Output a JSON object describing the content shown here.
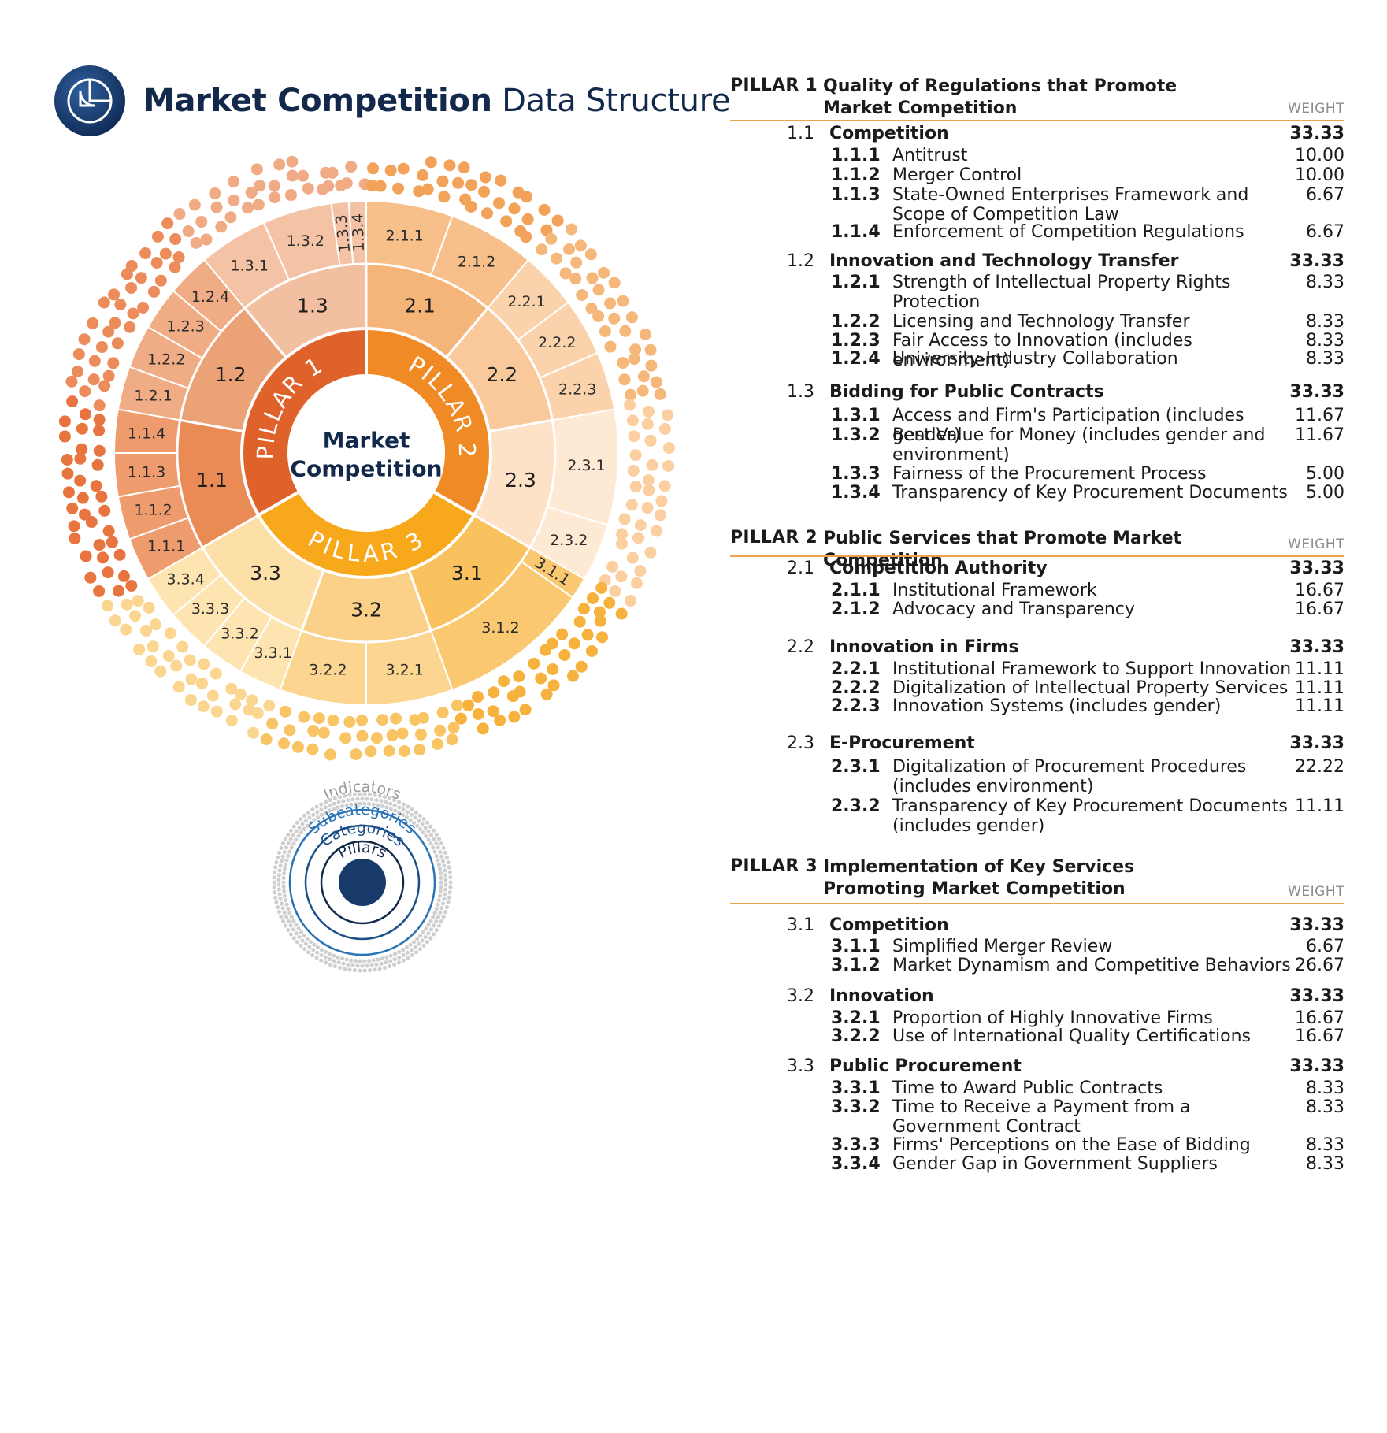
{
  "header": {
    "title_bold": "Market Competition",
    "title_light": "Data Structure",
    "logo_icon": "pie-chart-icon"
  },
  "colors": {
    "pillar1": "#e0622b",
    "pillar2": "#f08a24",
    "pillar3": "#f7a81b",
    "navy": "#13294b",
    "rule": "#f0a24a",
    "legend_blue": "#2a74b5"
  },
  "sunburst": {
    "center": [
      "Market",
      "Competition"
    ],
    "pillars": [
      "PILLAR 1",
      "PILLAR 2",
      "PILLAR 3"
    ],
    "categories": [
      "1.1",
      "1.2",
      "1.3",
      "2.1",
      "2.2",
      "2.3",
      "3.1",
      "3.2",
      "3.3"
    ],
    "subcategories": [
      "1.1.1",
      "1.1.2",
      "1.1.3",
      "1.1.4",
      "1.2.1",
      "1.2.2",
      "1.2.3",
      "1.2.4",
      "1.3.1",
      "1.3.2",
      "1.3.3",
      "1.3.4",
      "2.1.1",
      "2.1.2",
      "2.2.1",
      "2.2.2",
      "2.2.3",
      "2.3.1",
      "2.3.2",
      "3.1.1",
      "3.1.2",
      "3.2.1",
      "3.2.2",
      "3.3.1",
      "3.3.2",
      "3.3.3",
      "3.3.4"
    ]
  },
  "legend": {
    "indicators": "Indicators",
    "subcategories": "Subcategories",
    "categories": "Categories",
    "pillars": "Pillars"
  },
  "table": {
    "weight_label": "WEIGHT",
    "pillars": [
      {
        "code": "PILLAR 1",
        "title": "Quality of Regulations that Promote Market Competition",
        "categories": [
          {
            "code": "1.1",
            "name": "Competition",
            "weight": "33.33",
            "indicators": [
              {
                "code": "1.1.1",
                "name": "Antitrust",
                "weight": "10.00"
              },
              {
                "code": "1.1.2",
                "name": "Merger Control",
                "weight": "10.00"
              },
              {
                "code": "1.1.3",
                "name": "State-Owned Enterprises Framework and Scope of Competition Law",
                "weight": "6.67"
              },
              {
                "code": "1.1.4",
                "name": "Enforcement of Competition Regulations",
                "weight": "6.67"
              }
            ]
          },
          {
            "code": "1.2",
            "name": "Innovation and Technology Transfer",
            "weight": "33.33",
            "indicators": [
              {
                "code": "1.2.1",
                "name": "Strength of Intellectual Property Rights Protection",
                "weight": "8.33"
              },
              {
                "code": "1.2.2",
                "name": "Licensing and Technology Transfer",
                "weight": "8.33"
              },
              {
                "code": "1.2.3",
                "name": "Fair Access to Innovation (includes environment)",
                "weight": "8.33"
              },
              {
                "code": "1.2.4",
                "name": "University-Industry Collaboration",
                "weight": "8.33"
              }
            ]
          },
          {
            "code": "1.3",
            "name": "Bidding for Public Contracts",
            "weight": "33.33",
            "indicators": [
              {
                "code": "1.3.1",
                "name": "Access and Firm's Participation (includes gender)",
                "weight": "11.67"
              },
              {
                "code": "1.3.2",
                "name": "Best Value for Money (includes gender and environment)",
                "weight": "11.67"
              },
              {
                "code": "1.3.3",
                "name": "Fairness of the Procurement Process",
                "weight": "5.00"
              },
              {
                "code": "1.3.4",
                "name": "Transparency of Key Procurement Documents",
                "weight": "5.00"
              }
            ]
          }
        ]
      },
      {
        "code": "PILLAR 2",
        "title": "Public Services that Promote Market Competition",
        "categories": [
          {
            "code": "2.1",
            "name": "Competition Authority",
            "weight": "33.33",
            "indicators": [
              {
                "code": "2.1.1",
                "name": "Institutional Framework",
                "weight": "16.67"
              },
              {
                "code": "2.1.2",
                "name": "Advocacy and Transparency",
                "weight": "16.67"
              }
            ]
          },
          {
            "code": "2.2",
            "name": "Innovation in Firms",
            "weight": "33.33",
            "indicators": [
              {
                "code": "2.2.1",
                "name": "Institutional Framework to Support Innovation",
                "weight": "11.11"
              },
              {
                "code": "2.2.2",
                "name": "Digitalization of Intellectual Property Services",
                "weight": "11.11"
              },
              {
                "code": "2.2.3",
                "name": "Innovation Systems (includes gender)",
                "weight": "11.11"
              }
            ]
          },
          {
            "code": "2.3",
            "name": "E-Procurement",
            "weight": "33.33",
            "indicators": [
              {
                "code": "2.3.1",
                "name": "Digitalization of Procurement Procedures (includes environment)",
                "weight": "22.22"
              },
              {
                "code": "2.3.2",
                "name": "Transparency of Key Procurement Documents (includes gender)",
                "weight": "11.11"
              }
            ]
          }
        ]
      },
      {
        "code": "PILLAR 3",
        "title": "Implementation of Key Services Promoting Market Competition",
        "categories": [
          {
            "code": "3.1",
            "name": "Competition",
            "weight": "33.33",
            "indicators": [
              {
                "code": "3.1.1",
                "name": "Simplified Merger Review",
                "weight": "6.67"
              },
              {
                "code": "3.1.2",
                "name": "Market Dynamism and Competitive Behaviors",
                "weight": "26.67"
              }
            ]
          },
          {
            "code": "3.2",
            "name": "Innovation",
            "weight": "33.33",
            "indicators": [
              {
                "code": "3.2.1",
                "name": "Proportion of Highly Innovative Firms",
                "weight": "16.67"
              },
              {
                "code": "3.2.2",
                "name": "Use of International Quality Certifications",
                "weight": "16.67"
              }
            ]
          },
          {
            "code": "3.3",
            "name": "Public Procurement",
            "weight": "33.33",
            "indicators": [
              {
                "code": "3.3.1",
                "name": "Time to Award Public Contracts",
                "weight": "8.33"
              },
              {
                "code": "3.3.2",
                "name": "Time to Receive a Payment from a Government Contract",
                "weight": "8.33"
              },
              {
                "code": "3.3.3",
                "name": "Firms' Perceptions on the Ease of Bidding",
                "weight": "8.33"
              },
              {
                "code": "3.3.4",
                "name": "Gender Gap in Government Suppliers",
                "weight": "8.33"
              }
            ]
          }
        ]
      }
    ]
  }
}
